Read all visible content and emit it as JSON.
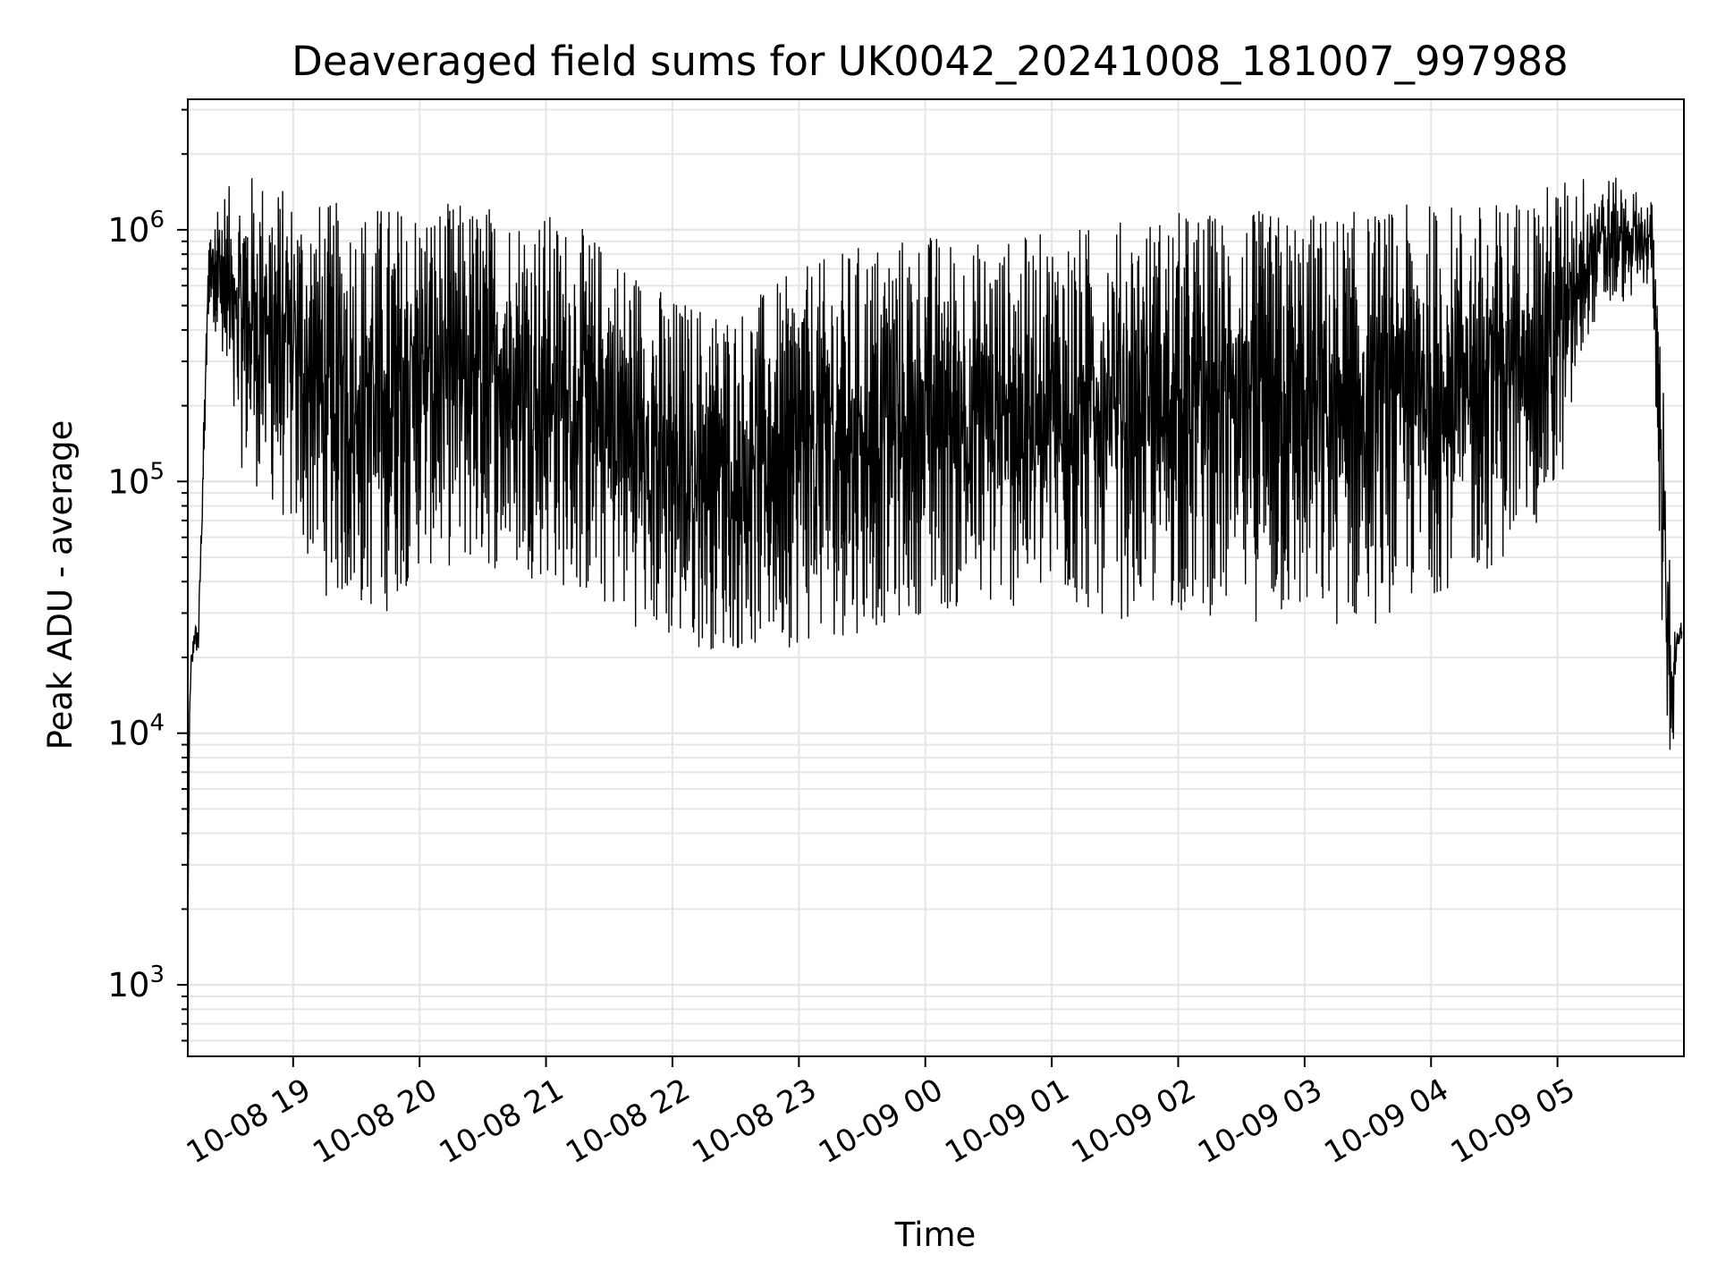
{
  "chart_data": {
    "type": "line",
    "title": "Deaveraged field sums for UK0042_20241008_181007_997988",
    "xlabel": "Time",
    "ylabel": "Peak ADU - average",
    "yscale": "log",
    "ylim": [
      520,
      3300000
    ],
    "xlim": [
      "2024-10-08 18:10",
      "2024-10-09 06:00"
    ],
    "grid": true,
    "line_color": "#000000",
    "grid_color": "#e6e6e6",
    "x_ticks": [
      "10-08 19",
      "10-08 20",
      "10-08 21",
      "10-08 22",
      "10-08 23",
      "10-09 00",
      "10-09 01",
      "10-09 02",
      "10-09 03",
      "10-09 04",
      "10-09 05"
    ],
    "y_ticks": [
      {
        "base": "10",
        "exp": "3",
        "value": 1000
      },
      {
        "base": "10",
        "exp": "4",
        "value": 10000
      },
      {
        "base": "10",
        "exp": "5",
        "value": 100000
      },
      {
        "base": "10",
        "exp": "6",
        "value": 1000000
      }
    ],
    "x": [
      "2024-10-08 18:10",
      "2024-10-08 18:11",
      "2024-10-08 18:13",
      "2024-10-08 18:15",
      "2024-10-08 18:20",
      "2024-10-08 18:23",
      "2024-10-08 18:25",
      "2024-10-08 18:27",
      "2024-10-08 18:30",
      "2024-10-08 18:33",
      "2024-10-08 18:40",
      "2024-10-08 18:50",
      "2024-10-08 19:00",
      "2024-10-08 19:15",
      "2024-10-08 19:30",
      "2024-10-08 19:45",
      "2024-10-08 20:00",
      "2024-10-08 20:30",
      "2024-10-08 21:00",
      "2024-10-08 21:30",
      "2024-10-08 22:00",
      "2024-10-08 22:30",
      "2024-10-08 23:00",
      "2024-10-08 23:30",
      "2024-10-09 00:00",
      "2024-10-09 00:30",
      "2024-10-09 01:00",
      "2024-10-09 01:30",
      "2024-10-09 02:00",
      "2024-10-09 02:30",
      "2024-10-09 03:00",
      "2024-10-09 03:30",
      "2024-10-09 04:00",
      "2024-10-09 04:30",
      "2024-10-09 05:00",
      "2024-10-09 05:15",
      "2024-10-09 05:30",
      "2024-10-09 05:45",
      "2024-10-09 05:50",
      "2024-10-09 05:53",
      "2024-10-09 05:55",
      "2024-10-09 05:57",
      "2024-10-09 05:59"
    ],
    "envelope_high": [
      2000,
      20000,
      30000,
      30000,
      1000000,
      1300000,
      1500000,
      1500000,
      1500000,
      1600000,
      1700000,
      1600000,
      1400000,
      1300000,
      1300000,
      1300000,
      1300000,
      1300000,
      1200000,
      900000,
      550000,
      500000,
      700000,
      900000,
      1000000,
      900000,
      1000000,
      1100000,
      1200000,
      1200000,
      1200000,
      1200000,
      1300000,
      1300000,
      1600000,
      1700000,
      1600000,
      1300000,
      300000,
      60000,
      25000,
      28000,
      30000
    ],
    "envelope_low": [
      1500,
      10000,
      20000,
      18000,
      500000,
      400000,
      300000,
      200000,
      150000,
      120000,
      100000,
      80000,
      60000,
      35000,
      30000,
      30000,
      45000,
      45000,
      40000,
      30000,
      22000,
      21000,
      22000,
      25000,
      30000,
      30000,
      32000,
      28000,
      30000,
      28000,
      26000,
      26000,
      35000,
      45000,
      80000,
      400000,
      500000,
      600000,
      20000,
      7000,
      8000,
      20000,
      22000
    ]
  }
}
